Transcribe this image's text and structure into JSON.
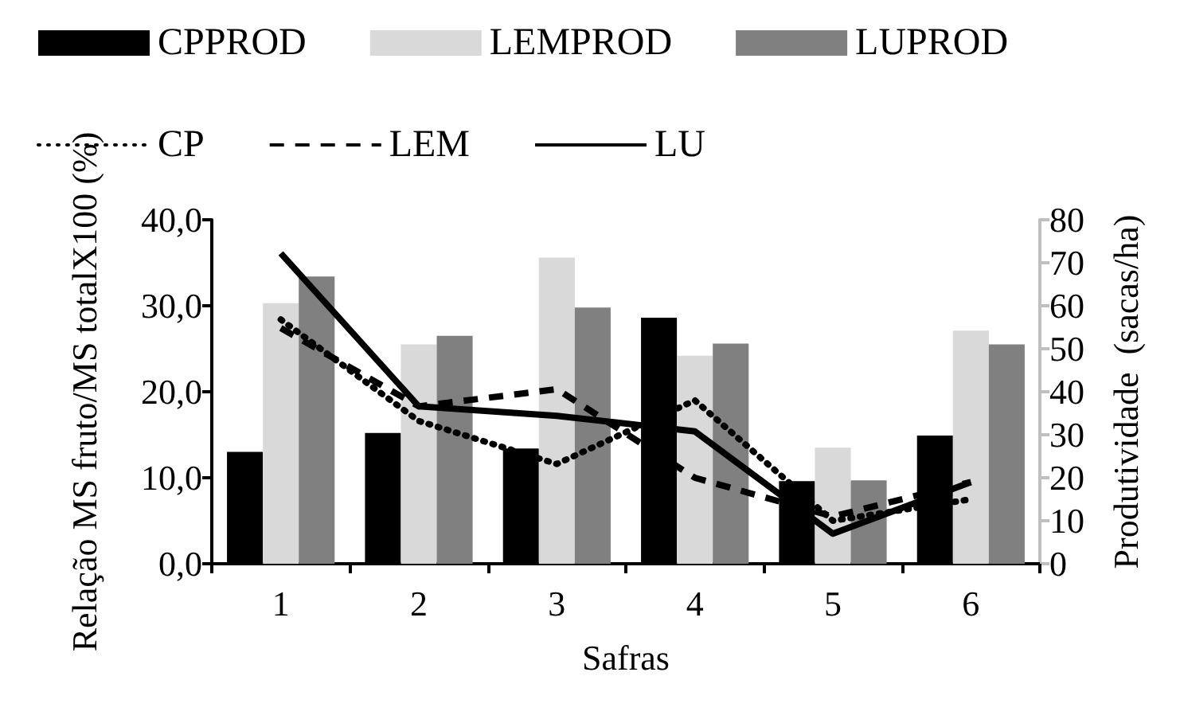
{
  "chart_data": {
    "type": "bar",
    "xlabel": "Safras",
    "ylabel": "Relação MS fruto/MS totalX100 (%)",
    "y2label": "Produtividade  (sacas/ha)",
    "categories": [
      "1",
      "2",
      "3",
      "4",
      "5",
      "6"
    ],
    "series": [
      {
        "name": "CPPROD",
        "axis": "y2",
        "color": "#000000",
        "values": [
          26,
          30.4,
          26.8,
          57.2,
          19.2,
          29.8
        ]
      },
      {
        "name": "LEMPROD",
        "axis": "y2",
        "color": "#d9d9d9",
        "values": [
          60.6,
          51,
          71.2,
          48.4,
          27,
          54.2
        ]
      },
      {
        "name": "LUPROD",
        "axis": "y2",
        "color": "#808080",
        "values": [
          66.8,
          53,
          59.6,
          51.2,
          19.4,
          51
        ]
      },
      {
        "name": "CP",
        "type": "line",
        "axis": "y",
        "color": "#000000",
        "line_style": "dotted",
        "values": [
          28.4,
          16.6,
          11.6,
          19,
          5,
          7.5
        ]
      },
      {
        "name": "LEM",
        "type": "line",
        "axis": "y",
        "color": "#000000",
        "line_style": "dashed",
        "values": [
          27.4,
          18.3,
          20.3,
          10,
          5.5,
          9.5
        ]
      },
      {
        "name": "LU",
        "type": "line",
        "axis": "y",
        "color": "#000000",
        "line_style": "solid",
        "values": [
          36.1,
          18.3,
          17.2,
          15.4,
          3.5,
          9.5
        ]
      }
    ],
    "ylim": [
      0,
      40
    ],
    "yticks": [
      {
        "value": 0,
        "label": "0,0"
      },
      {
        "value": 10,
        "label": "10,0"
      },
      {
        "value": 20,
        "label": "20,0"
      },
      {
        "value": 30,
        "label": "30,0"
      },
      {
        "value": 40,
        "label": "40,0"
      }
    ],
    "y2lim": [
      0,
      80
    ],
    "y2ticks": [
      0,
      10,
      20,
      30,
      40,
      50,
      60,
      70,
      80
    ],
    "grid": false,
    "legend": "top",
    "marker": "none"
  }
}
